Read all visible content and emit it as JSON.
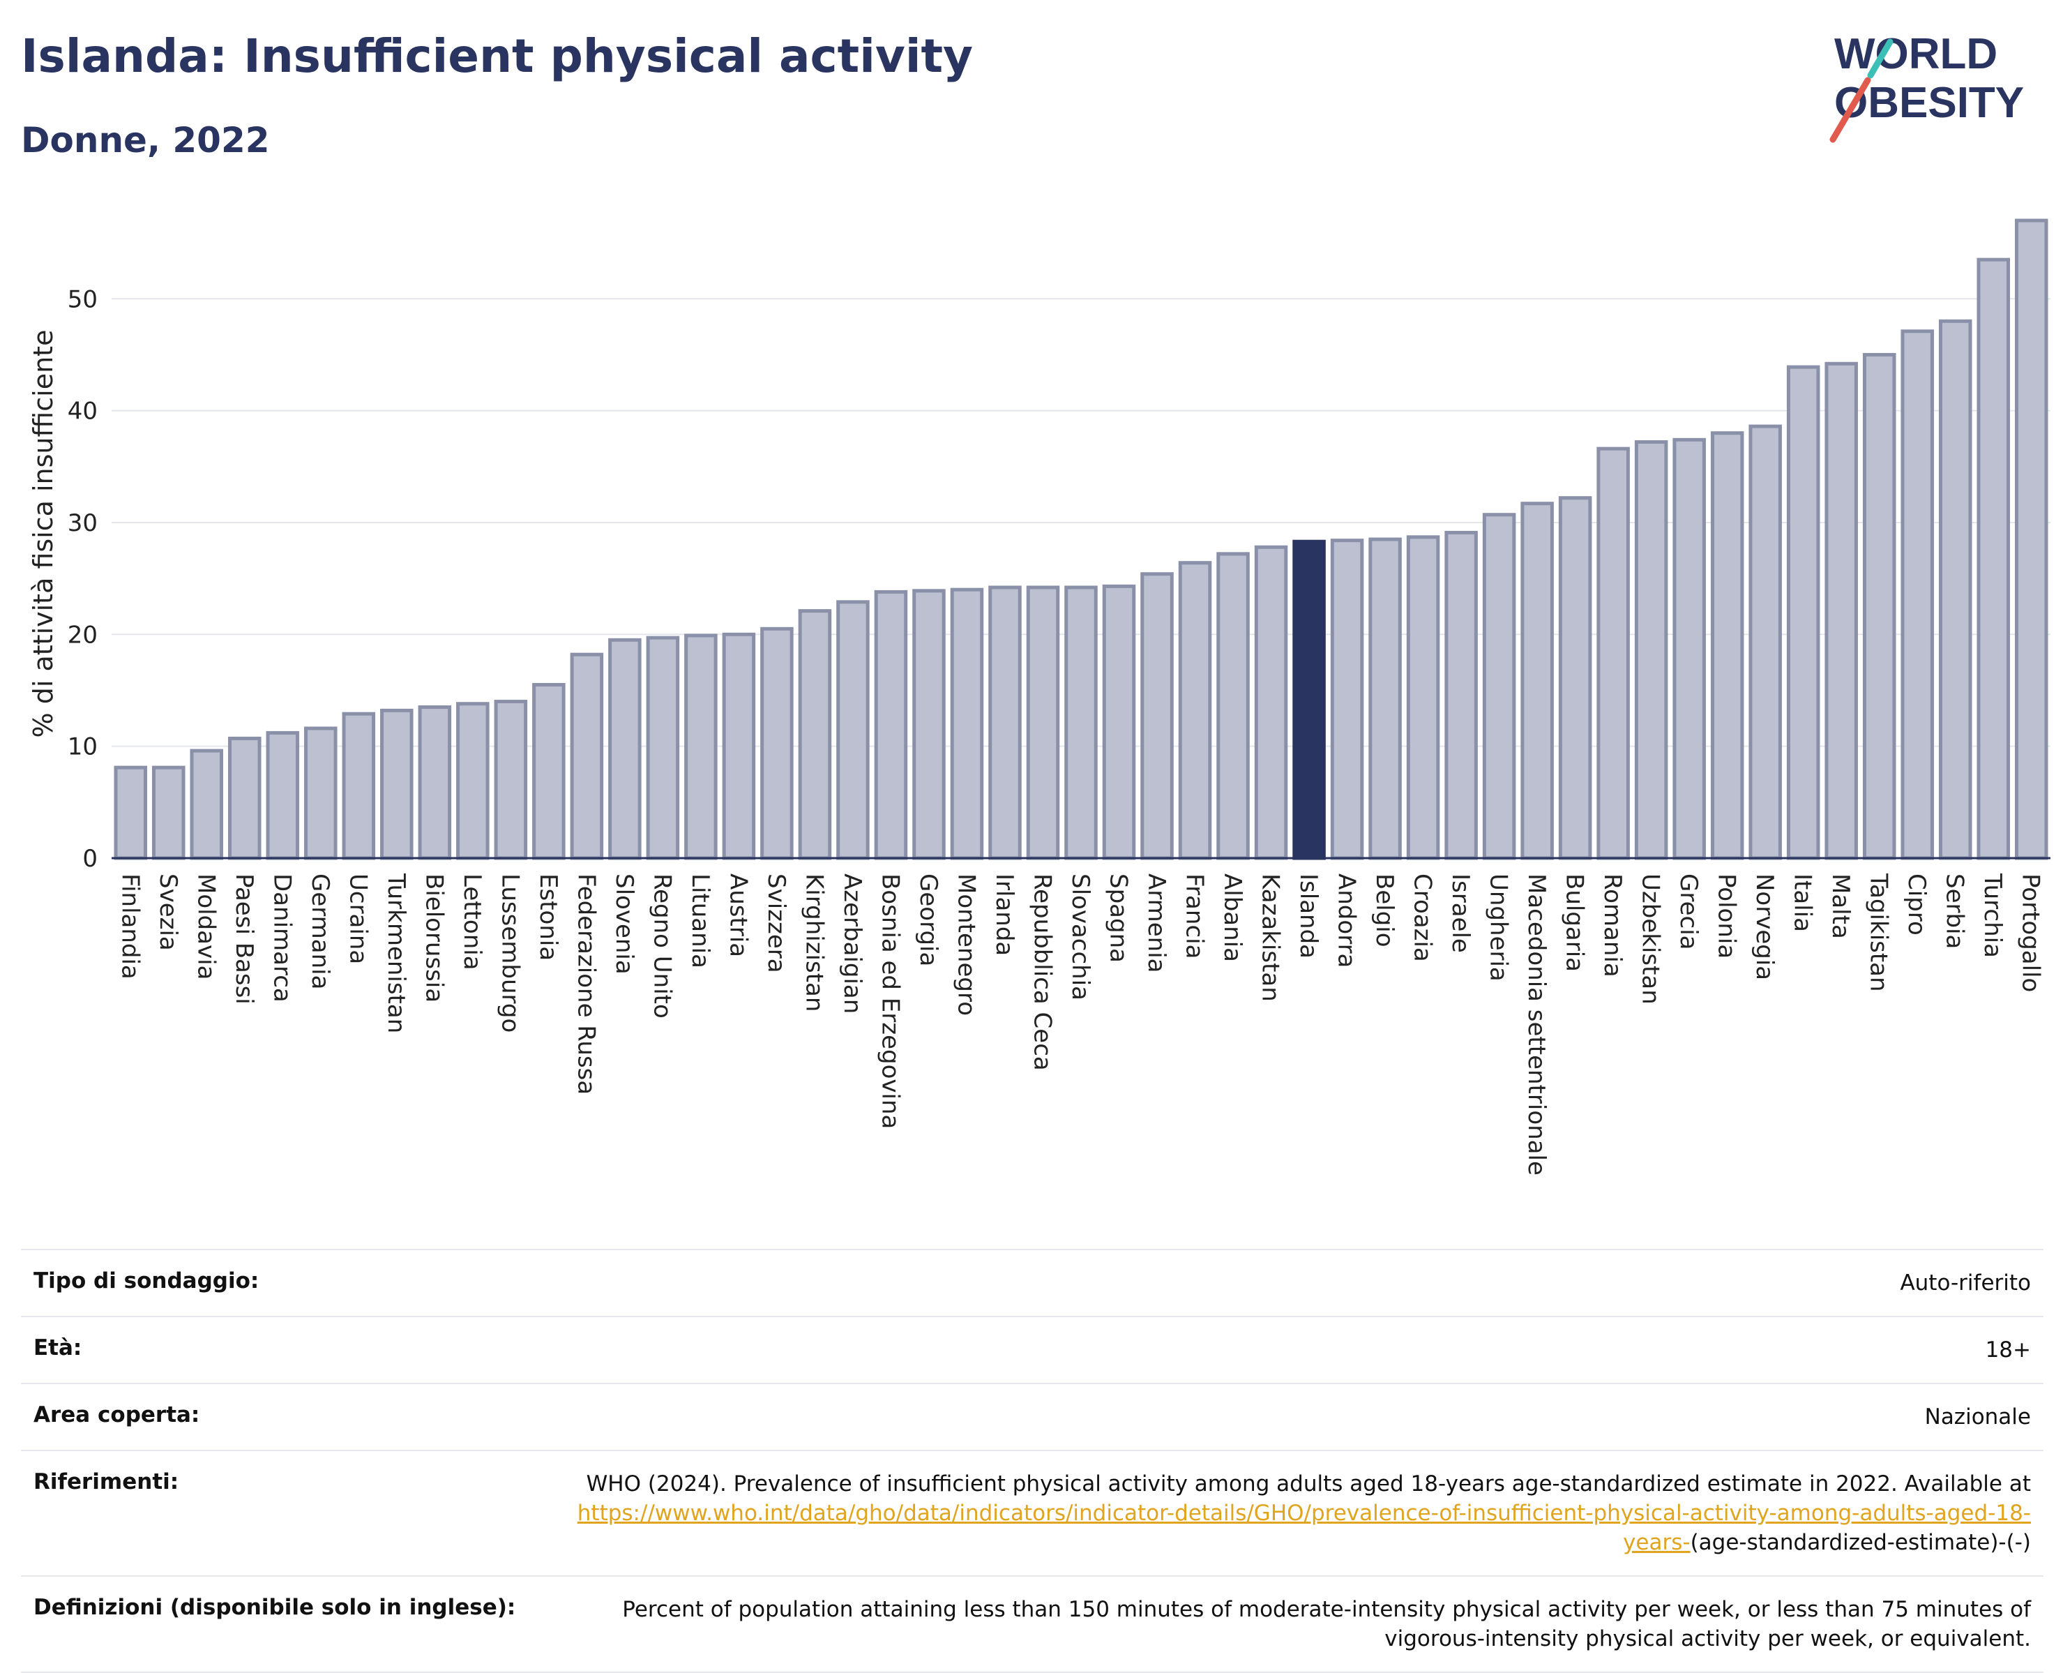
{
  "header": {
    "title": "Islanda: Insufficient physical activity",
    "subtitle": "Donne, 2022"
  },
  "logo": {
    "line1": "WORLD",
    "line2": "OBESITY",
    "accent_colors": [
      "#e05a4e",
      "#3bbfb6"
    ]
  },
  "colors": {
    "bar": "#bcc0d0",
    "bar_stroke": "#8a90a8",
    "highlight": "#2a3460",
    "text": "#2a3460"
  },
  "chart_data": {
    "type": "bar",
    "ylabel": "% di attività fisica insufficiente",
    "ylim": [
      0,
      58
    ],
    "yticks": [
      0,
      10,
      20,
      30,
      40,
      50
    ],
    "grid": true,
    "highlight": "Islanda",
    "categories": [
      "Finlandia",
      "Svezia",
      "Moldavia",
      "Paesi Bassi",
      "Danimarca",
      "Germania",
      "Ucraina",
      "Turkmenistan",
      "Bielorussia",
      "Lettonia",
      "Lussemburgo",
      "Estonia",
      "Federazione Russa",
      "Slovenia",
      "Regno Unito",
      "Lituania",
      "Austria",
      "Svizzera",
      "Kirghizistan",
      "Azerbaigian",
      "Bosnia ed Erzegovina",
      "Georgia",
      "Montenegro",
      "Irlanda",
      "Repubblica Ceca",
      "Slovacchia",
      "Spagna",
      "Armenia",
      "Francia",
      "Albania",
      "Kazakistan",
      "Islanda",
      "Andorra",
      "Belgio",
      "Croazia",
      "Israele",
      "Ungheria",
      "Macedonia settentrionale",
      "Bulgaria",
      "Romania",
      "Uzbekistan",
      "Grecia",
      "Polonia",
      "Norvegia",
      "Italia",
      "Malta",
      "Tagikistan",
      "Cipro",
      "Serbia",
      "Turchia",
      "Portogallo"
    ],
    "values": [
      8.1,
      8.1,
      9.6,
      10.7,
      11.2,
      11.6,
      12.9,
      13.2,
      13.5,
      13.8,
      14.0,
      15.5,
      18.2,
      19.5,
      19.7,
      19.9,
      20.0,
      20.5,
      22.1,
      22.9,
      23.8,
      23.9,
      24.0,
      24.2,
      24.2,
      24.2,
      24.3,
      25.4,
      26.4,
      27.2,
      27.8,
      28.3,
      28.4,
      28.5,
      28.7,
      29.1,
      30.7,
      31.7,
      32.2,
      36.6,
      37.2,
      37.4,
      38.0,
      38.6,
      43.9,
      44.2,
      45.0,
      47.1,
      48.0,
      53.5,
      57.0
    ]
  },
  "meta": [
    {
      "key": "Tipo di sondaggio:",
      "value": "Auto-riferito"
    },
    {
      "key": "Età:",
      "value": "18+"
    },
    {
      "key": "Area coperta:",
      "value": "Nazionale"
    },
    {
      "key": "Riferimenti:",
      "value_pre": "WHO (2024). Prevalence of insufficient physical activity among adults aged 18-years age-standardized estimate in 2022. Available at",
      "link": "https://www.who.int/data/gho/data/indicators/indicator-details/GHO/prevalence-of-insufficient-physical-activity-among-adults-aged-18-years-",
      "value_post": "(age-standardized-estimate)-(-)"
    },
    {
      "key": "Definizioni (disponibile solo in inglese):",
      "value": "Percent of population attaining less than 150 minutes of moderate-intensity physical activity per week, or less than 75 minutes of vigorous-intensity physical activity per week, or equivalent."
    }
  ]
}
